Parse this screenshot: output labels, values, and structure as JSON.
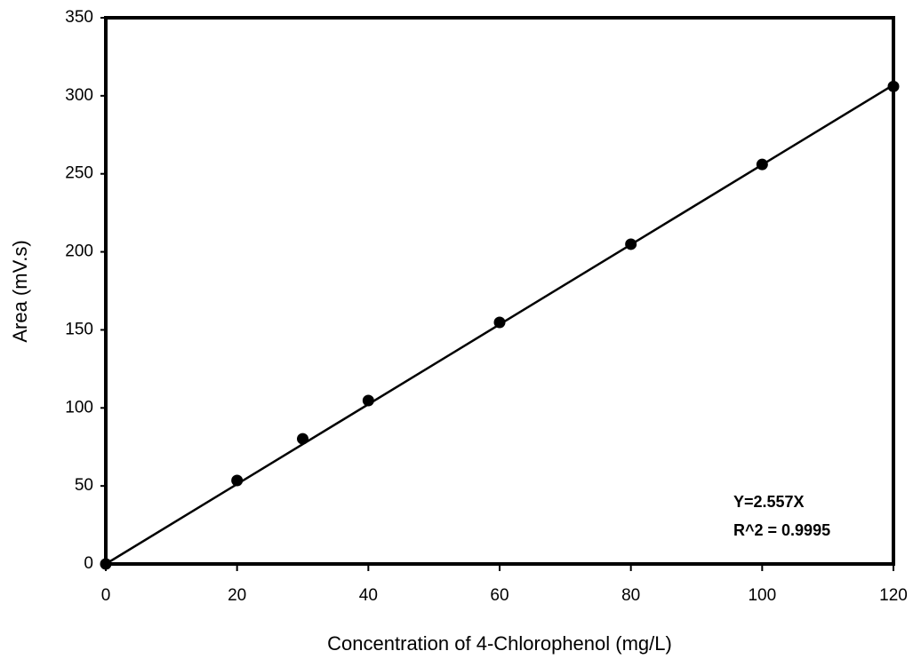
{
  "chart_data": {
    "type": "scatter",
    "x_label": "Concentration of 4-Chlorophenol (mg/L)",
    "y_label": "Area (mV.s)",
    "xlim": [
      0,
      120
    ],
    "xticks": [
      0,
      20,
      40,
      60,
      80,
      100,
      120
    ],
    "ylim": [
      0,
      350
    ],
    "yticks": [
      0,
      50,
      100,
      150,
      200,
      250,
      300,
      350
    ],
    "grid": false,
    "series": [
      {
        "color": "#000000",
        "mode": "markers",
        "x": [
          0,
          20,
          30,
          40,
          60,
          80,
          100,
          120
        ],
        "values": [
          0,
          53.5,
          80.2,
          104.7,
          154.8,
          204.9,
          256,
          306
        ]
      },
      {
        "color": "#000000",
        "mode": "line",
        "x": [
          0,
          120
        ],
        "values": [
          0,
          307
        ]
      }
    ],
    "annotations": [
      "Y=2.557X",
      "R^2 = 0.9995"
    ]
  }
}
